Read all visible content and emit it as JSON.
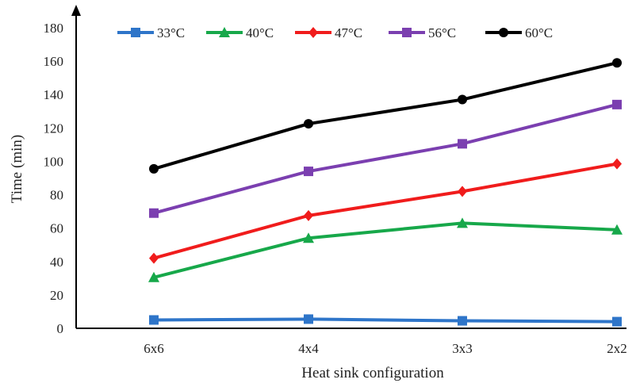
{
  "chart_data": {
    "type": "line",
    "title": "",
    "xlabel": "Heat sink configuration",
    "ylabel": "Time (min)",
    "categories": [
      "6x6",
      "4x4",
      "3x3",
      "2x2"
    ],
    "ylim": [
      0,
      180
    ],
    "yticks": [
      0,
      20,
      40,
      60,
      80,
      100,
      120,
      140,
      160,
      180
    ],
    "grid": false,
    "legend_position": "top",
    "series": [
      {
        "name": "33°C",
        "color": "#2e75c9",
        "marker": "square",
        "values": [
          5,
          5.5,
          4.5,
          4
        ]
      },
      {
        "name": "40°C",
        "color": "#17a84a",
        "marker": "triangle",
        "values": [
          30.5,
          54,
          63,
          59
        ]
      },
      {
        "name": "47°C",
        "color": "#f01c1c",
        "marker": "diamond",
        "values": [
          42,
          67.5,
          82,
          98.5
        ]
      },
      {
        "name": "56°C",
        "color": "#7b3fb0",
        "marker": "square",
        "values": [
          69,
          94,
          110.5,
          134
        ]
      },
      {
        "name": "60°C",
        "color": "#000000",
        "marker": "circle",
        "values": [
          95.5,
          122.5,
          137,
          159
        ]
      }
    ]
  }
}
